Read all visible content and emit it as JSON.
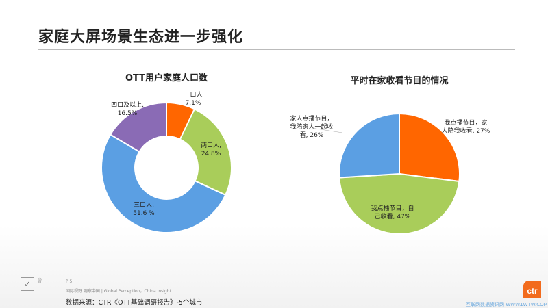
{
  "page_title": "家庭大屏场景生态进一步强化",
  "footer": {
    "page": "P 5",
    "slogan": "国际视野 洞察中国 | Global Perception，China Insight",
    "source": "数据来源：CTR《OTT基础调研报告》-5个城市",
    "logo": "ctr",
    "watermark": "互联网数据资讯网 WWW.LWTW.COM"
  },
  "chart_data": [
    {
      "type": "pie",
      "variant": "donut",
      "title": "OTT用户家庭人口数",
      "categories": [
        "一口人",
        "两口人",
        "三口人",
        "四口及以上"
      ],
      "values": [
        7.1,
        24.8,
        51.6,
        16.5
      ],
      "labels": [
        [
          "一口人",
          "7.1%"
        ],
        [
          "两口人,",
          "24.8%"
        ],
        [
          "三口人,",
          "51.6 %"
        ],
        [
          "四口及以上,",
          "16.5%"
        ]
      ],
      "colors": [
        "#FF6600",
        "#A9CD5A",
        "#5B9FE3",
        "#8A6BB5"
      ]
    },
    {
      "type": "pie",
      "title": "平时在家收看节目的情况",
      "categories": [
        "我点播节目，家人陪我收看",
        "我点播节目，自己收看",
        "家人点播节目，我陪家人一起收看"
      ],
      "values": [
        27,
        47,
        26
      ],
      "labels": [
        [
          "我点播节目，家",
          "人陪我收看, 27%"
        ],
        [
          "我点播节目，自",
          "己收看, 47%"
        ],
        [
          "家人点播节目，",
          "我陪家人一起收",
          "看, 26%"
        ]
      ],
      "colors": [
        "#FF6600",
        "#A9CD5A",
        "#5B9FE3"
      ]
    }
  ]
}
